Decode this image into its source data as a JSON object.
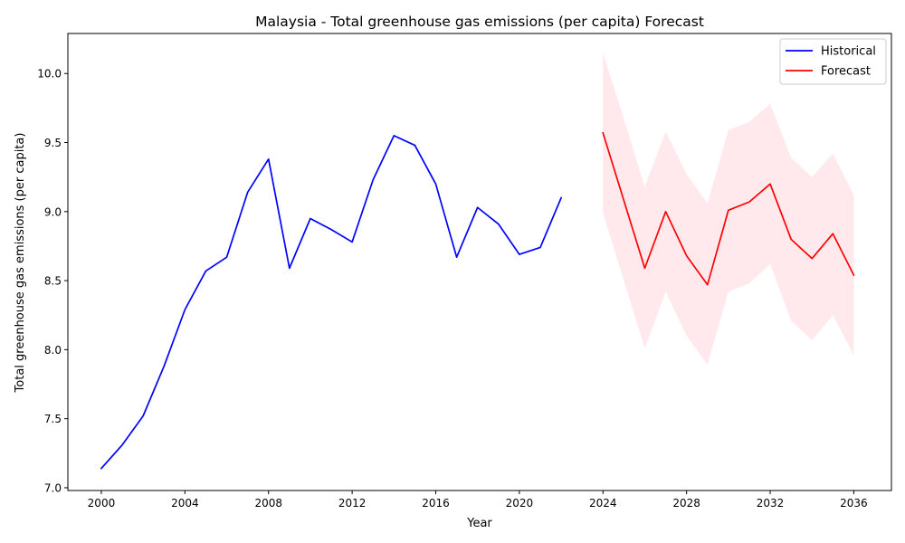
{
  "chart_data": {
    "type": "line",
    "title": "Malaysia - Total greenhouse gas emissions (per capita) Forecast",
    "xlabel": "Year",
    "ylabel": "Total greenhouse gas emissions (per capita)",
    "xlim": [
      1998.4,
      2037.8
    ],
    "ylim": [
      6.98,
      10.29
    ],
    "xticks": [
      2000,
      2004,
      2008,
      2012,
      2016,
      2020,
      2024,
      2028,
      2032,
      2036
    ],
    "yticks": [
      7.0,
      7.5,
      8.0,
      8.5,
      9.0,
      9.5,
      10.0
    ],
    "ytick_labels": [
      "7.0",
      "7.5",
      "8.0",
      "8.5",
      "9.0",
      "9.5",
      "10.0"
    ],
    "grid": false,
    "legend_position": "top-right",
    "series": [
      {
        "name": "Historical",
        "color": "#0000ff",
        "x": [
          2000,
          2001,
          2002,
          2003,
          2004,
          2005,
          2006,
          2007,
          2008,
          2009,
          2010,
          2011,
          2012,
          2013,
          2014,
          2015,
          2016,
          2017,
          2018,
          2019,
          2020,
          2021,
          2022
        ],
        "y": [
          7.14,
          7.31,
          7.52,
          7.88,
          8.29,
          8.57,
          8.67,
          9.14,
          9.38,
          8.59,
          8.95,
          8.87,
          8.78,
          9.23,
          9.55,
          9.48,
          9.2,
          8.67,
          9.03,
          8.91,
          8.69,
          8.74,
          9.1
        ]
      },
      {
        "name": "Forecast",
        "color": "#ff0000",
        "x": [
          2024,
          2025,
          2026,
          2027,
          2028,
          2029,
          2030,
          2031,
          2032,
          2033,
          2034,
          2035,
          2036
        ],
        "y": [
          9.57,
          9.08,
          8.59,
          9.0,
          8.68,
          8.47,
          9.01,
          9.07,
          9.2,
          8.8,
          8.66,
          8.84,
          8.54
        ],
        "band_upper": [
          10.15,
          9.67,
          9.18,
          9.58,
          9.27,
          9.06,
          9.59,
          9.65,
          9.78,
          9.39,
          9.25,
          9.42,
          9.12
        ],
        "band_lower": [
          8.99,
          8.5,
          8.01,
          8.42,
          8.1,
          7.89,
          8.42,
          8.48,
          8.62,
          8.21,
          8.07,
          8.25,
          7.96
        ],
        "band_color": "#ffc0cb"
      }
    ]
  }
}
